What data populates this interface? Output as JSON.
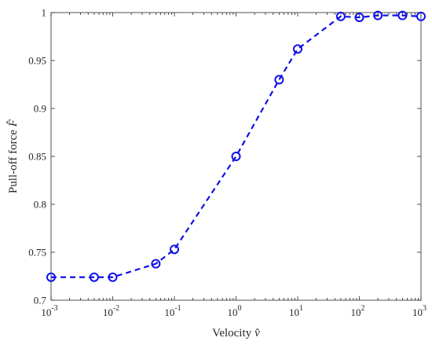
{
  "chart_data": {
    "type": "line",
    "title": "",
    "xlabel": "Velocity",
    "xlabel_symbol": "v̂",
    "ylabel": "Pull-off force",
    "ylabel_symbol": "F̂",
    "x_scale": "log",
    "xlim": [
      0.001,
      1000
    ],
    "ylim": [
      0.7,
      1.0
    ],
    "x_ticks": [
      {
        "base": "10",
        "exp": "-3",
        "value": 0.001
      },
      {
        "base": "10",
        "exp": "-2",
        "value": 0.01
      },
      {
        "base": "10",
        "exp": "-1",
        "value": 0.1
      },
      {
        "base": "10",
        "exp": "0",
        "value": 1
      },
      {
        "base": "10",
        "exp": "1",
        "value": 10
      },
      {
        "base": "10",
        "exp": "2",
        "value": 100
      },
      {
        "base": "10",
        "exp": "3",
        "value": 1000
      }
    ],
    "y_ticks": [
      {
        "label": "0.7",
        "value": 0.7
      },
      {
        "label": "0.75",
        "value": 0.75
      },
      {
        "label": "0.8",
        "value": 0.8
      },
      {
        "label": "0.85",
        "value": 0.85
      },
      {
        "label": "0.9",
        "value": 0.9
      },
      {
        "label": "0.95",
        "value": 0.95
      },
      {
        "label": "1",
        "value": 1.0
      }
    ],
    "grid": false,
    "series": [
      {
        "color": "#1010e8",
        "line_style": "dashed",
        "marker": "circle",
        "x": [
          0.001,
          0.005,
          0.01,
          0.05,
          0.1,
          1,
          5,
          10,
          50,
          100,
          200,
          500,
          1000
        ],
        "y": [
          0.724,
          0.724,
          0.724,
          0.738,
          0.753,
          0.85,
          0.93,
          0.962,
          0.996,
          0.995,
          0.997,
          0.997,
          0.996
        ]
      }
    ]
  }
}
